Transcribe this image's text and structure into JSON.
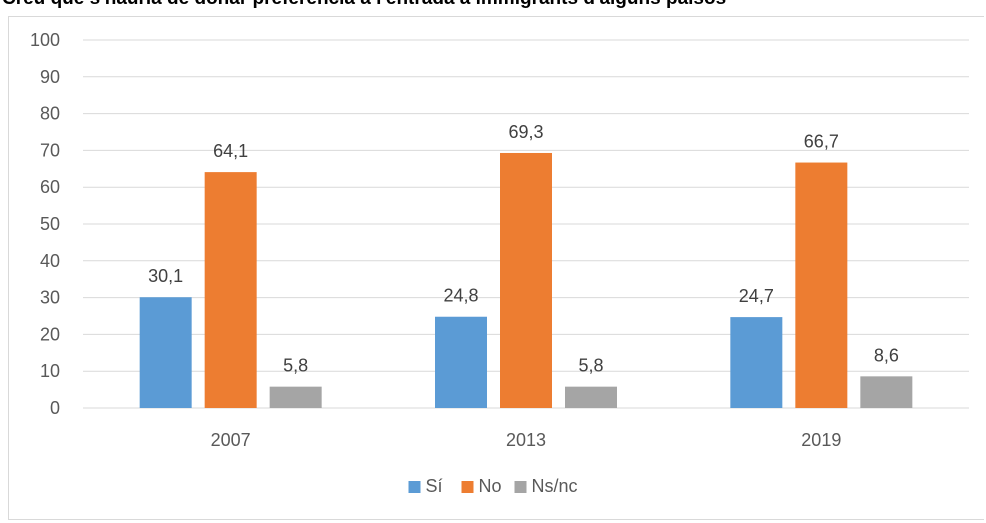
{
  "chart_data": {
    "type": "bar",
    "title": "Creu que s'hauria de donar preferència a l'entrada a immigrants d'alguns països",
    "categories": [
      "2007",
      "2013",
      "2019"
    ],
    "series": [
      {
        "name": "Sí",
        "values": [
          30.1,
          24.8,
          24.7
        ],
        "labels": [
          "30,1",
          "24,8",
          "24,7"
        ],
        "color": "#5b9bd5"
      },
      {
        "name": "No",
        "values": [
          64.1,
          69.3,
          66.7
        ],
        "labels": [
          "64,1",
          "69,3",
          "66,7"
        ],
        "color": "#ed7d31"
      },
      {
        "name": "Ns/nc",
        "values": [
          5.8,
          5.8,
          8.6
        ],
        "labels": [
          "5,8",
          "5,8",
          "8,6"
        ],
        "color": "#a5a5a5"
      }
    ],
    "ylim": [
      0,
      100
    ],
    "yticks": [
      "0",
      "10",
      "20",
      "30",
      "40",
      "50",
      "60",
      "70",
      "80",
      "90",
      "100"
    ],
    "grid": true,
    "legend": "bottom",
    "xlabel": "",
    "ylabel": ""
  }
}
